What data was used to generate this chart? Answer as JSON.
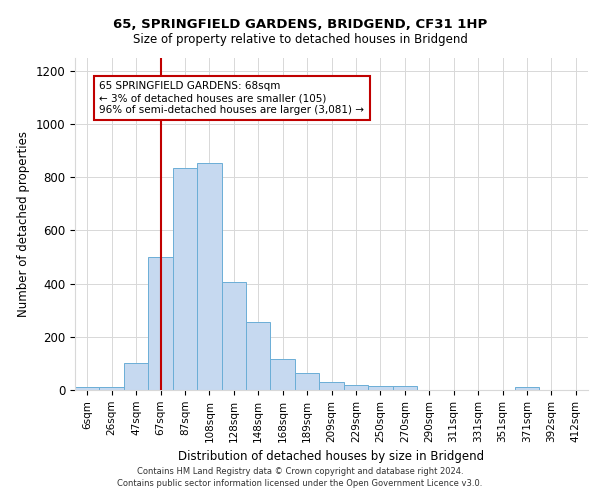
{
  "title_line1": "65, SPRINGFIELD GARDENS, BRIDGEND, CF31 1HP",
  "title_line2": "Size of property relative to detached houses in Bridgend",
  "xlabel": "Distribution of detached houses by size in Bridgend",
  "ylabel": "Number of detached properties",
  "categories": [
    "6sqm",
    "26sqm",
    "47sqm",
    "67sqm",
    "87sqm",
    "108sqm",
    "128sqm",
    "148sqm",
    "168sqm",
    "189sqm",
    "209sqm",
    "229sqm",
    "250sqm",
    "270sqm",
    "290sqm",
    "311sqm",
    "331sqm",
    "351sqm",
    "371sqm",
    "392sqm",
    "412sqm"
  ],
  "values": [
    10,
    12,
    100,
    500,
    835,
    855,
    405,
    255,
    115,
    65,
    30,
    20,
    15,
    15,
    0,
    0,
    0,
    0,
    10,
    0,
    0
  ],
  "bar_color": "#c6d9f0",
  "bar_edge_color": "#6baed6",
  "vline_index": 3,
  "annotation_line1": "65 SPRINGFIELD GARDENS: 68sqm",
  "annotation_line2": "← 3% of detached houses are smaller (105)",
  "annotation_line3": "96% of semi-detached houses are larger (3,081) →",
  "vline_color": "#c00000",
  "annotation_box_color": "#c00000",
  "ylim": [
    0,
    1250
  ],
  "yticks": [
    0,
    200,
    400,
    600,
    800,
    1000,
    1200
  ],
  "footer_line1": "Contains HM Land Registry data © Crown copyright and database right 2024.",
  "footer_line2": "Contains public sector information licensed under the Open Government Licence v3.0.",
  "background_color": "#ffffff",
  "grid_color": "#d8d8d8"
}
